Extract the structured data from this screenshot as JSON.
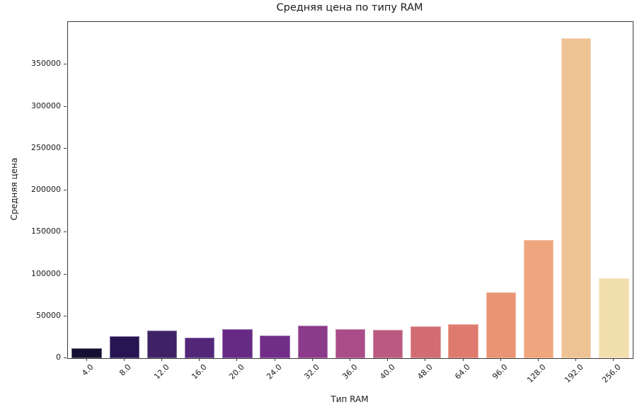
{
  "figure": {
    "background": "#ffffff",
    "spine_color": "#3a3a3a",
    "text_color": "#1a1a1a"
  },
  "chart_data": {
    "type": "bar",
    "title": "Средняя цена по типу RAM",
    "xlabel": "Тип RAM",
    "ylabel": "Средняя цена",
    "categories": [
      "4.0",
      "8.0",
      "12.0",
      "16.0",
      "20.0",
      "24.0",
      "32.0",
      "36.0",
      "40.0",
      "48.0",
      "64.0",
      "96.0",
      "128.0",
      "192.0",
      "256.0"
    ],
    "values": [
      12000,
      25900,
      33100,
      24200,
      34800,
      27000,
      38800,
      34800,
      33800,
      37900,
      40500,
      78400,
      141400,
      381900,
      95300
    ],
    "bar_colors": [
      "#131031",
      "#261453",
      "#3f2266",
      "#522779",
      "#662a84",
      "#722d88",
      "#8c3a8b",
      "#aa4c87",
      "#ba5a81",
      "#d26d73",
      "#df7b6e",
      "#e99472",
      "#efa67f",
      "#eec394",
      "#f2dfae"
    ],
    "ylim": [
      0,
      401000
    ],
    "yticks": [
      0,
      50000,
      100000,
      150000,
      200000,
      250000,
      300000,
      350000
    ],
    "grid": false,
    "legend_position": "none",
    "bar_width_fraction": 0.8,
    "x_tick_rotation_deg": 45
  }
}
